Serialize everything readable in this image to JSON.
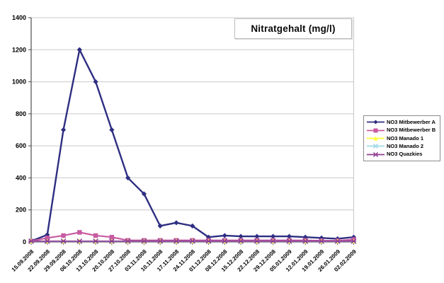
{
  "title": "Nitratgehalt (mg/l)",
  "chart_data": {
    "type": "line",
    "title": "Nitratgehalt (mg/l)",
    "xlabel": "",
    "ylabel": "",
    "ylim": [
      0,
      1400
    ],
    "yticks": [
      0,
      200,
      400,
      600,
      800,
      1000,
      1200,
      1400
    ],
    "grid": true,
    "legend_position": "right",
    "categories": [
      "15.09.2008",
      "22.09.2008",
      "29.09.2008",
      "06.10.2008",
      "13.10.2008",
      "20.10.2008",
      "27.10.2008",
      "03.11.2008",
      "10.11.2008",
      "17.11.2008",
      "24.11.2008",
      "01.12.2008",
      "08.12.2008",
      "15.12.2008",
      "22.12.2008",
      "29.12.2008",
      "05.01.2009",
      "12.01.2009",
      "19.01.2009",
      "26.01.2009",
      "02.02.2009"
    ],
    "series": [
      {
        "name": "NO3 Mitbewerber A",
        "color": "#2e2e82",
        "marker": "diamond",
        "values": [
          5,
          45,
          700,
          1200,
          1000,
          700,
          400,
          300,
          100,
          120,
          100,
          30,
          40,
          35,
          35,
          35,
          35,
          30,
          25,
          20,
          30
        ]
      },
      {
        "name": "NO3 Mitbewerber B",
        "color": "#c75aa1",
        "marker": "square",
        "values": [
          5,
          25,
          40,
          60,
          40,
          30,
          10,
          10,
          10,
          10,
          10,
          10,
          10,
          10,
          10,
          10,
          10,
          10,
          8,
          8,
          15
        ]
      },
      {
        "name": "NO3 Manado 1",
        "color": "#ffff33",
        "marker": "triangle",
        "values": [
          5,
          5,
          5,
          5,
          5,
          5,
          5,
          5,
          5,
          5,
          5,
          5,
          5,
          5,
          5,
          5,
          5,
          5,
          5,
          5,
          5
        ]
      },
      {
        "name": "NO3 Manado 2",
        "color": "#9fd8e8",
        "marker": "x",
        "values": [
          3,
          3,
          3,
          3,
          3,
          3,
          3,
          3,
          3,
          3,
          3,
          3,
          3,
          3,
          3,
          3,
          3,
          3,
          3,
          3,
          3
        ]
      },
      {
        "name": "NO3 Quazkies",
        "color": "#8f3a92",
        "marker": "star",
        "values": [
          5,
          5,
          5,
          5,
          5,
          5,
          5,
          5,
          5,
          5,
          5,
          5,
          5,
          5,
          5,
          5,
          5,
          5,
          5,
          5,
          5
        ]
      }
    ]
  }
}
